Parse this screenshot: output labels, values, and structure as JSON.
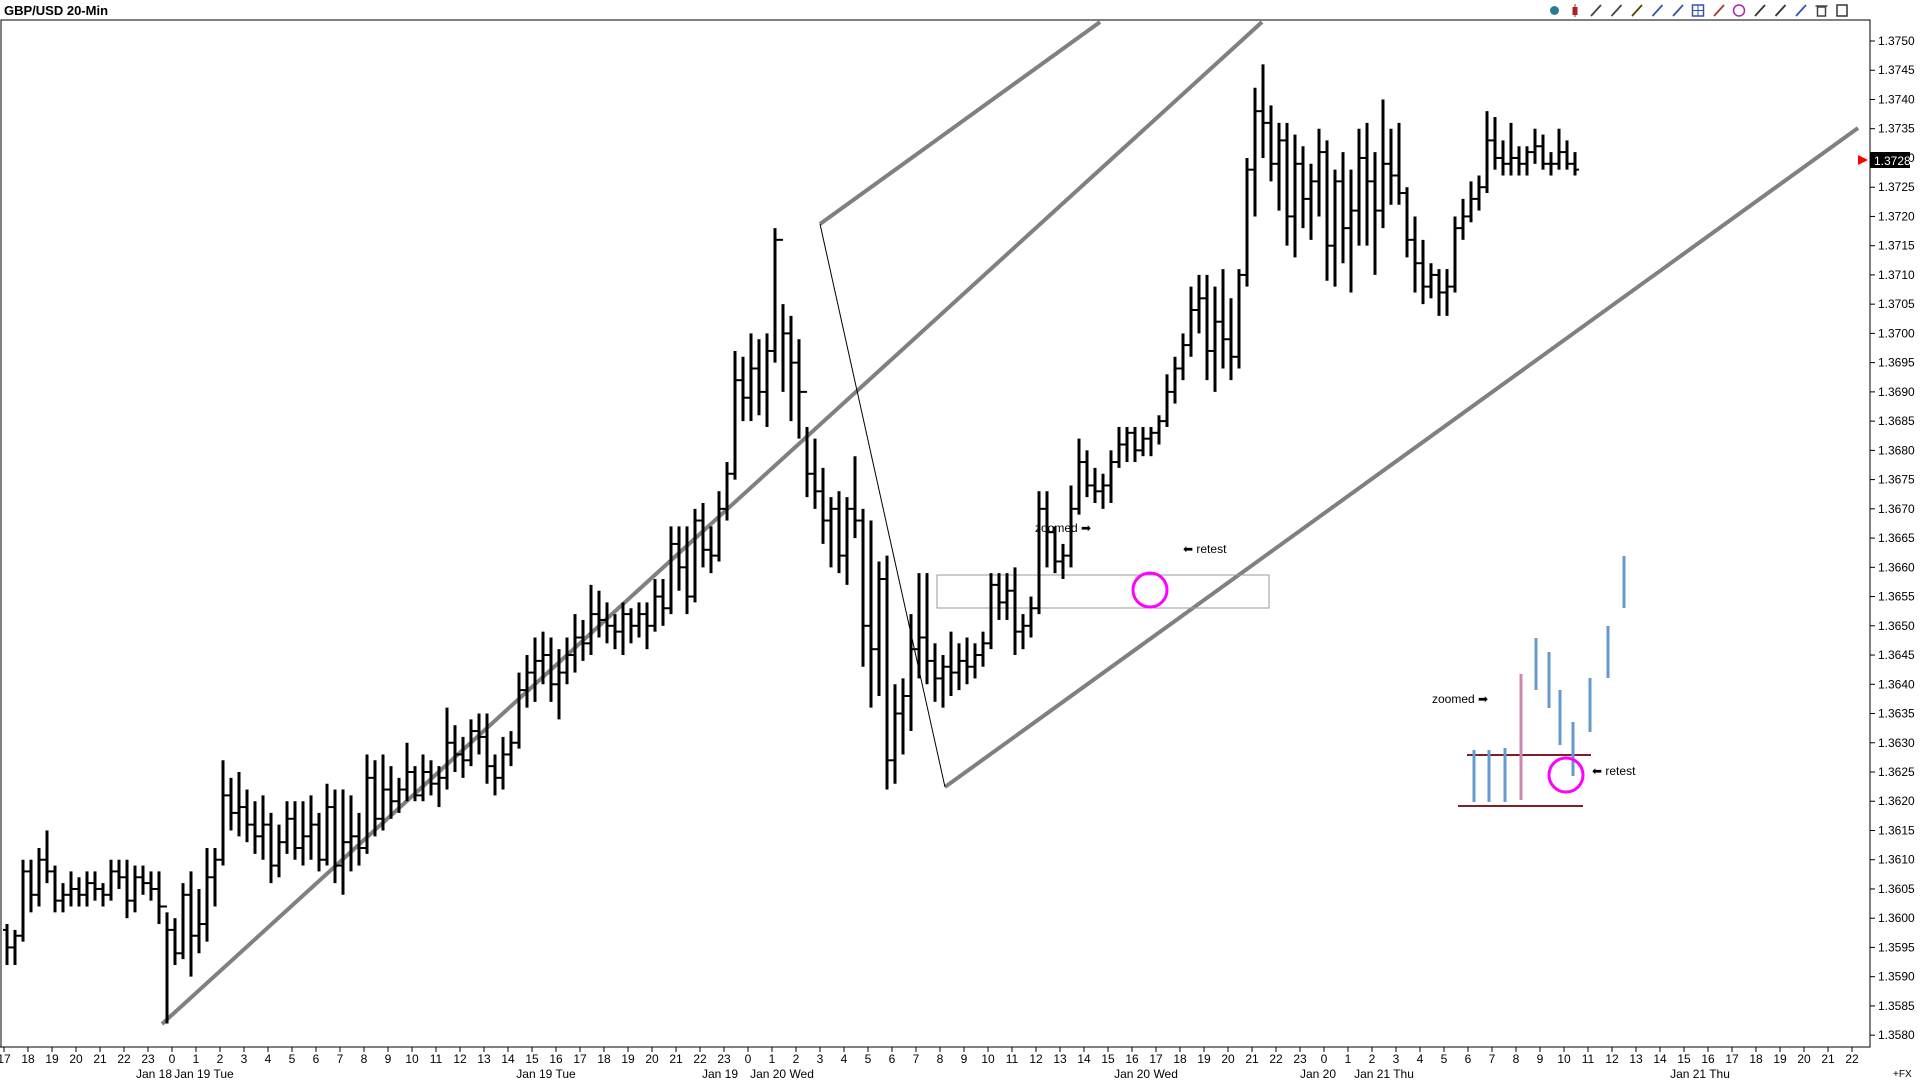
{
  "chart_data": {
    "type": "ohlc",
    "title": "GBP/USD 20-Min",
    "ylim": [
      1.3578,
      1.3752
    ],
    "y_ticks": [
      "1.3580",
      "1.3585",
      "1.3590",
      "1.3595",
      "1.3600",
      "1.3605",
      "1.3610",
      "1.3615",
      "1.3620",
      "1.3625",
      "1.3630",
      "1.3635",
      "1.3640",
      "1.3645",
      "1.3650",
      "1.3655",
      "1.3660",
      "1.3665",
      "1.3670",
      "1.3675",
      "1.3680",
      "1.3685",
      "1.3690",
      "1.3695",
      "1.3700",
      "1.3705",
      "1.3710",
      "1.3715",
      "1.3720",
      "1.3725",
      "1.3730",
      "1.3735",
      "1.3740",
      "1.3745",
      "1.3750"
    ],
    "x_hour_ticks": [
      "17",
      "18",
      "19",
      "20",
      "21",
      "22",
      "23",
      "0",
      "1",
      "2",
      "3",
      "4",
      "5",
      "6",
      "7",
      "8",
      "9",
      "10",
      "11",
      "12",
      "13",
      "14",
      "15",
      "16",
      "17",
      "18",
      "19",
      "20",
      "21",
      "22",
      "23",
      "0",
      "1",
      "2",
      "3",
      "4",
      "5",
      "6",
      "7",
      "8",
      "9",
      "10",
      "11",
      "12",
      "13",
      "14",
      "15",
      "16",
      "17",
      "18",
      "19",
      "20",
      "21",
      "22",
      "23",
      "0",
      "1",
      "2",
      "3",
      "4",
      "5",
      "6",
      "7",
      "8",
      "9",
      "10",
      "11",
      "12",
      "13",
      "14",
      "15",
      "16",
      "17",
      "18",
      "19",
      "20",
      "21",
      "22"
    ],
    "x_date_labels": [
      "Jan 18",
      "Jan 19 Tue",
      "Jan 19 Tue",
      "Jan 19",
      "Jan 20 Wed",
      "Jan 20 Wed",
      "Jan 20",
      "Jan 21 Thu",
      "Jan 21 Thu"
    ],
    "last_price": "1.3728",
    "corner_label": "+FX",
    "bars": [
      [
        1.3598,
        1.3599,
        1.3592,
        1.3595
      ],
      [
        1.3595,
        1.3598,
        1.3592,
        1.3597
      ],
      [
        1.3597,
        1.361,
        1.3596,
        1.3608
      ],
      [
        1.3608,
        1.361,
        1.3601,
        1.3604
      ],
      [
        1.3604,
        1.3612,
        1.3602,
        1.361
      ],
      [
        1.361,
        1.3615,
        1.3606,
        1.3608
      ],
      [
        1.3608,
        1.3609,
        1.3601,
        1.3603
      ],
      [
        1.3603,
        1.3606,
        1.3601,
        1.3604
      ],
      [
        1.3604,
        1.3608,
        1.3602,
        1.3605
      ],
      [
        1.3605,
        1.3607,
        1.3602,
        1.3604
      ],
      [
        1.3604,
        1.3608,
        1.3602,
        1.3606
      ],
      [
        1.3606,
        1.3608,
        1.3603,
        1.3605
      ],
      [
        1.3605,
        1.3606,
        1.3602,
        1.3604
      ],
      [
        1.3604,
        1.361,
        1.3603,
        1.3608
      ],
      [
        1.3608,
        1.361,
        1.3605,
        1.3607
      ],
      [
        1.3607,
        1.361,
        1.36,
        1.3603
      ],
      [
        1.3603,
        1.3609,
        1.3601,
        1.3607
      ],
      [
        1.3607,
        1.3609,
        1.3604,
        1.3606
      ],
      [
        1.3606,
        1.3608,
        1.3603,
        1.3605
      ],
      [
        1.3605,
        1.3608,
        1.3599,
        1.3602
      ],
      [
        1.3602,
        1.3601,
        1.3582,
        1.3598
      ],
      [
        1.3598,
        1.36,
        1.3592,
        1.3594
      ],
      [
        1.3594,
        1.3606,
        1.3593,
        1.3604
      ],
      [
        1.3604,
        1.3608,
        1.359,
        1.3597
      ],
      [
        1.3597,
        1.3605,
        1.3594,
        1.3599
      ],
      [
        1.3599,
        1.3612,
        1.3596,
        1.3607
      ],
      [
        1.3607,
        1.3612,
        1.3602,
        1.361
      ],
      [
        1.361,
        1.3627,
        1.3609,
        1.3621
      ],
      [
        1.3621,
        1.3624,
        1.3615,
        1.3618
      ],
      [
        1.3618,
        1.3625,
        1.3614,
        1.3619
      ],
      [
        1.3619,
        1.3622,
        1.3613,
        1.3616
      ],
      [
        1.3616,
        1.362,
        1.3611,
        1.3614
      ],
      [
        1.3614,
        1.3621,
        1.361,
        1.3616
      ],
      [
        1.3616,
        1.3618,
        1.3606,
        1.3609
      ],
      [
        1.3609,
        1.3616,
        1.3607,
        1.3613
      ],
      [
        1.3613,
        1.362,
        1.3611,
        1.3617
      ],
      [
        1.3617,
        1.362,
        1.361,
        1.3612
      ],
      [
        1.3612,
        1.362,
        1.3609,
        1.3614
      ],
      [
        1.3614,
        1.3621,
        1.361,
        1.3616
      ],
      [
        1.3616,
        1.3618,
        1.3608,
        1.361
      ],
      [
        1.361,
        1.3623,
        1.3609,
        1.3619
      ],
      [
        1.3619,
        1.3622,
        1.3606,
        1.3609
      ],
      [
        1.3609,
        1.3622,
        1.3604,
        1.3613
      ],
      [
        1.3613,
        1.3621,
        1.3608,
        1.3614
      ],
      [
        1.3614,
        1.3618,
        1.3609,
        1.3612
      ],
      [
        1.3612,
        1.3628,
        1.3611,
        1.3624
      ],
      [
        1.3624,
        1.3627,
        1.3614,
        1.3617
      ],
      [
        1.3617,
        1.3628,
        1.3615,
        1.3622
      ],
      [
        1.3622,
        1.3626,
        1.3617,
        1.362
      ],
      [
        1.362,
        1.3624,
        1.3618,
        1.3622
      ],
      [
        1.3622,
        1.363,
        1.362,
        1.3625
      ],
      [
        1.3625,
        1.3626,
        1.362,
        1.3621
      ],
      [
        1.3621,
        1.3628,
        1.362,
        1.3625
      ],
      [
        1.3625,
        1.3627,
        1.3621,
        1.3623
      ],
      [
        1.3623,
        1.3626,
        1.3619,
        1.3624
      ],
      [
        1.3624,
        1.3636,
        1.3622,
        1.363
      ],
      [
        1.363,
        1.3633,
        1.3625,
        1.3628
      ],
      [
        1.3628,
        1.3631,
        1.3624,
        1.3627
      ],
      [
        1.3627,
        1.3634,
        1.3626,
        1.3632
      ],
      [
        1.3632,
        1.3635,
        1.3628,
        1.3631
      ],
      [
        1.3631,
        1.3635,
        1.3623,
        1.3626
      ],
      [
        1.3626,
        1.3628,
        1.3621,
        1.3624
      ],
      [
        1.3624,
        1.3631,
        1.3622,
        1.3628
      ],
      [
        1.3628,
        1.3632,
        1.3626,
        1.363
      ],
      [
        1.363,
        1.3642,
        1.3629,
        1.3639
      ],
      [
        1.3639,
        1.3645,
        1.3636,
        1.3642
      ],
      [
        1.3642,
        1.3648,
        1.3637,
        1.3644
      ],
      [
        1.3644,
        1.3649,
        1.364,
        1.3645
      ],
      [
        1.3645,
        1.3648,
        1.3637,
        1.364
      ],
      [
        1.364,
        1.3646,
        1.3634,
        1.3642
      ],
      [
        1.3642,
        1.3648,
        1.364,
        1.3645
      ],
      [
        1.3645,
        1.3652,
        1.3642,
        1.3648
      ],
      [
        1.3648,
        1.3651,
        1.3644,
        1.3647
      ],
      [
        1.3647,
        1.3657,
        1.3645,
        1.3652
      ],
      [
        1.3652,
        1.3656,
        1.3648,
        1.3651
      ],
      [
        1.3651,
        1.3654,
        1.3647,
        1.365
      ],
      [
        1.365,
        1.3652,
        1.3646,
        1.3649
      ],
      [
        1.3649,
        1.3654,
        1.3645,
        1.3652
      ],
      [
        1.3652,
        1.3653,
        1.3647,
        1.365
      ],
      [
        1.365,
        1.3654,
        1.3648,
        1.3652
      ],
      [
        1.3652,
        1.3654,
        1.3646,
        1.365
      ],
      [
        1.365,
        1.3658,
        1.3649,
        1.3655
      ],
      [
        1.3655,
        1.3658,
        1.365,
        1.3653
      ],
      [
        1.3653,
        1.3667,
        1.3652,
        1.3664
      ],
      [
        1.3664,
        1.3667,
        1.3656,
        1.366
      ],
      [
        1.366,
        1.3667,
        1.3652,
        1.3655
      ],
      [
        1.3655,
        1.367,
        1.3654,
        1.3668
      ],
      [
        1.3668,
        1.3671,
        1.366,
        1.3663
      ],
      [
        1.3663,
        1.3667,
        1.3659,
        1.3662
      ],
      [
        1.3662,
        1.3673,
        1.3661,
        1.367
      ],
      [
        1.367,
        1.3678,
        1.3668,
        1.3676
      ],
      [
        1.3676,
        1.3697,
        1.3675,
        1.3692
      ],
      [
        1.3692,
        1.3696,
        1.3685,
        1.3689
      ],
      [
        1.3689,
        1.37,
        1.3685,
        1.3694
      ],
      [
        1.3694,
        1.3699,
        1.3686,
        1.369
      ],
      [
        1.369,
        1.37,
        1.3684,
        1.3697
      ],
      [
        1.3697,
        1.3718,
        1.3695,
        1.3716
      ],
      [
        1.3716,
        1.3705,
        1.369,
        1.37
      ],
      [
        1.37,
        1.3703,
        1.3685,
        1.3695
      ],
      [
        1.3695,
        1.3699,
        1.3682,
        1.369
      ],
      [
        1.369,
        1.3684,
        1.3672,
        1.3676
      ],
      [
        1.3676,
        1.3682,
        1.367,
        1.3673
      ],
      [
        1.3673,
        1.3677,
        1.3664,
        1.3668
      ],
      [
        1.3668,
        1.3672,
        1.366,
        1.367
      ],
      [
        1.367,
        1.3673,
        1.3659,
        1.3662
      ],
      [
        1.3662,
        1.3672,
        1.3657,
        1.367
      ],
      [
        1.367,
        1.3679,
        1.3665,
        1.3668
      ],
      [
        1.3668,
        1.367,
        1.3643,
        1.365
      ],
      [
        1.365,
        1.3668,
        1.3636,
        1.3646
      ],
      [
        1.3646,
        1.3661,
        1.3638,
        1.3658
      ],
      [
        1.3658,
        1.3662,
        1.3622,
        1.3627
      ],
      [
        1.3627,
        1.364,
        1.3623,
        1.3635
      ],
      [
        1.3635,
        1.3641,
        1.3628,
        1.3638
      ],
      [
        1.3638,
        1.3652,
        1.3632,
        1.3646
      ],
      [
        1.3646,
        1.3659,
        1.3641,
        1.3648
      ],
      [
        1.3648,
        1.3659,
        1.364,
        1.3644
      ],
      [
        1.3644,
        1.3647,
        1.3637,
        1.3641
      ],
      [
        1.3641,
        1.3645,
        1.3636,
        1.3643
      ],
      [
        1.3643,
        1.3649,
        1.3638,
        1.3642
      ],
      [
        1.3642,
        1.3647,
        1.3639,
        1.3644
      ],
      [
        1.3644,
        1.3648,
        1.364,
        1.3643
      ],
      [
        1.3643,
        1.3647,
        1.3641,
        1.3645
      ],
      [
        1.3645,
        1.3649,
        1.3643,
        1.3647
      ],
      [
        1.3647,
        1.3659,
        1.3646,
        1.3657
      ],
      [
        1.3657,
        1.3659,
        1.3651,
        1.3654
      ],
      [
        1.3654,
        1.3659,
        1.3651,
        1.3656
      ],
      [
        1.3656,
        1.366,
        1.3645,
        1.3649
      ],
      [
        1.3649,
        1.3652,
        1.3646,
        1.365
      ],
      [
        1.365,
        1.3655,
        1.3648,
        1.3653
      ],
      [
        1.3653,
        1.3673,
        1.3652,
        1.367
      ],
      [
        1.367,
        1.3673,
        1.366,
        1.3666
      ],
      [
        1.3666,
        1.3667,
        1.3659,
        1.3661
      ],
      [
        1.3661,
        1.3664,
        1.3658,
        1.3662
      ],
      [
        1.3662,
        1.3674,
        1.366,
        1.367
      ],
      [
        1.367,
        1.3682,
        1.3669,
        1.3678
      ],
      [
        1.3678,
        1.368,
        1.3672,
        1.3674
      ],
      [
        1.3674,
        1.3677,
        1.3671,
        1.3673
      ],
      [
        1.3673,
        1.3676,
        1.367,
        1.3674
      ],
      [
        1.3674,
        1.368,
        1.3671,
        1.3678
      ],
      [
        1.3678,
        1.3684,
        1.3677,
        1.3681
      ],
      [
        1.3681,
        1.3684,
        1.3678,
        1.3683
      ],
      [
        1.3683,
        1.3684,
        1.3678,
        1.368
      ],
      [
        1.368,
        1.3684,
        1.3679,
        1.3682
      ],
      [
        1.3682,
        1.3684,
        1.3679,
        1.3683
      ],
      [
        1.3683,
        1.3686,
        1.3681,
        1.3685
      ],
      [
        1.3685,
        1.3693,
        1.3684,
        1.369
      ],
      [
        1.369,
        1.3696,
        1.3688,
        1.3694
      ],
      [
        1.3694,
        1.37,
        1.3692,
        1.3698
      ],
      [
        1.3698,
        1.3708,
        1.3696,
        1.3704
      ],
      [
        1.3704,
        1.371,
        1.37,
        1.3706
      ],
      [
        1.3706,
        1.371,
        1.3692,
        1.3697
      ],
      [
        1.3697,
        1.3708,
        1.369,
        1.3702
      ],
      [
        1.3702,
        1.3711,
        1.3694,
        1.3699
      ],
      [
        1.3699,
        1.3706,
        1.3692,
        1.3696
      ],
      [
        1.3696,
        1.3711,
        1.3694,
        1.371
      ],
      [
        1.371,
        1.373,
        1.3708,
        1.3728
      ],
      [
        1.3728,
        1.3742,
        1.372,
        1.3738
      ],
      [
        1.3738,
        1.3746,
        1.373,
        1.3736
      ],
      [
        1.3736,
        1.3739,
        1.3726,
        1.3729
      ],
      [
        1.3729,
        1.3736,
        1.3721,
        1.3733
      ],
      [
        1.3733,
        1.3736,
        1.3715,
        1.372
      ],
      [
        1.372,
        1.3734,
        1.3713,
        1.3729
      ],
      [
        1.3729,
        1.3732,
        1.3718,
        1.3723
      ],
      [
        1.3723,
        1.3729,
        1.3716,
        1.3726
      ],
      [
        1.3726,
        1.3735,
        1.372,
        1.3731
      ],
      [
        1.3731,
        1.3733,
        1.3709,
        1.3715
      ],
      [
        1.3715,
        1.3728,
        1.3708,
        1.3726
      ],
      [
        1.3726,
        1.3731,
        1.3712,
        1.3718
      ],
      [
        1.3718,
        1.3728,
        1.3707,
        1.3721
      ],
      [
        1.3721,
        1.3735,
        1.3715,
        1.373
      ],
      [
        1.373,
        1.3736,
        1.3715,
        1.3726
      ],
      [
        1.3726,
        1.3731,
        1.371,
        1.3721
      ],
      [
        1.3721,
        1.374,
        1.3718,
        1.3729
      ],
      [
        1.3729,
        1.3735,
        1.3722,
        1.3727
      ],
      [
        1.3727,
        1.3736,
        1.3722,
        1.3724
      ],
      [
        1.3724,
        1.3725,
        1.3713,
        1.3716
      ],
      [
        1.3716,
        1.372,
        1.3707,
        1.3712
      ],
      [
        1.3712,
        1.3716,
        1.3705,
        1.3708
      ],
      [
        1.3708,
        1.3712,
        1.3706,
        1.371
      ],
      [
        1.371,
        1.3711,
        1.3703,
        1.3707
      ],
      [
        1.3707,
        1.3711,
        1.3703,
        1.3708
      ],
      [
        1.3708,
        1.372,
        1.3707,
        1.3718
      ],
      [
        1.3718,
        1.3723,
        1.3716,
        1.372
      ],
      [
        1.372,
        1.3726,
        1.3719,
        1.3723
      ],
      [
        1.3723,
        1.3727,
        1.3721,
        1.3725
      ],
      [
        1.3725,
        1.3738,
        1.3724,
        1.3733
      ],
      [
        1.3733,
        1.3737,
        1.3728,
        1.373
      ],
      [
        1.373,
        1.3733,
        1.3727,
        1.3729
      ],
      [
        1.3729,
        1.3736,
        1.3727,
        1.373
      ],
      [
        1.373,
        1.3732,
        1.3727,
        1.3729
      ],
      [
        1.3729,
        1.3732,
        1.3727,
        1.3731
      ],
      [
        1.3731,
        1.3735,
        1.3729,
        1.3732
      ],
      [
        1.3732,
        1.3734,
        1.3728,
        1.3729
      ],
      [
        1.3729,
        1.3731,
        1.3727,
        1.3729
      ],
      [
        1.3729,
        1.3735,
        1.3728,
        1.3731
      ],
      [
        1.3731,
        1.3733,
        1.3728,
        1.3729
      ],
      [
        1.3729,
        1.3731,
        1.3727,
        1.3728
      ]
    ]
  },
  "toolbar": {
    "icons": [
      "color-icon",
      "candle-icon",
      "tick-icon",
      "bar-icon",
      "pencil-icon",
      "line-icon",
      "channel-icon",
      "grid-icon",
      "fib-icon",
      "ellipse-icon",
      "wave-icon",
      "arrow-icon",
      "price-icon",
      "trash-icon",
      "maximize-icon"
    ]
  },
  "annotations": {
    "zoomed_main": "zoomed ➡",
    "retest_main": "⬅ retest",
    "zoomed_inset": "zoomed ➡",
    "retest_inset": "⬅ retest"
  },
  "colors": {
    "bars": "#000000",
    "channel": "#808080",
    "circle": "#ff00ff",
    "inset_blue": "#6699cc",
    "inset_pink": "#cc88aa",
    "inset_lines": "#7a1f2b",
    "price_tag": "#000000",
    "price_arrow": "#ff0000"
  }
}
